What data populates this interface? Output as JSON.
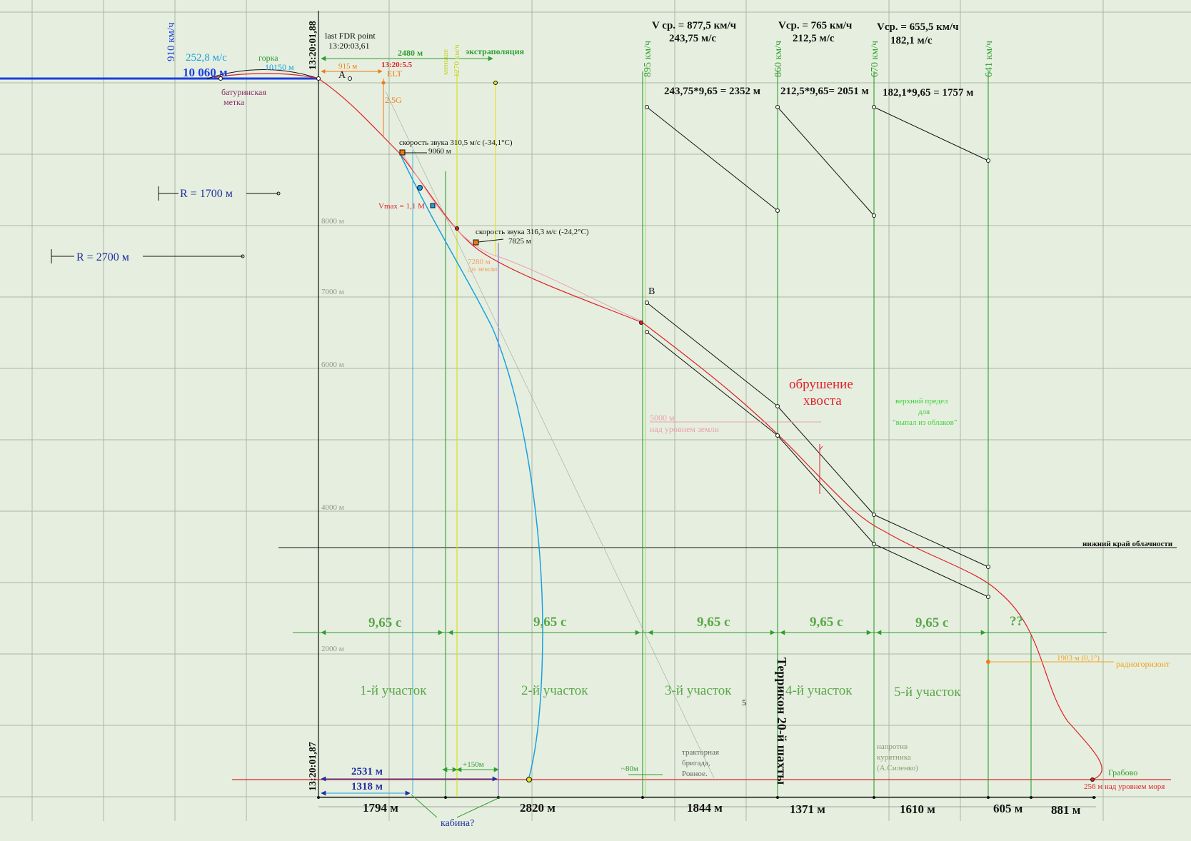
{
  "colors": {
    "background": "#e6efdf",
    "grid": "#a9b7a3",
    "trajectory_red": "#e0202a",
    "cabin_blue": "#1aa0e0",
    "green": "#2f9e2f",
    "label_green": "#5aa64a",
    "dark_blue": "#1f2fa0",
    "orange": "#f07a10",
    "black": "#111111",
    "purple": "#8a2a6a",
    "pink": "#e8a0b0",
    "yellow": "#e8e020",
    "violet": "#7a50d0"
  },
  "left_scale": {
    "speed_910": "910 км/ч",
    "speed_252": "252,8 м/с",
    "altitude_10060": "10 060 м",
    "hill_label": "горка",
    "hill_alt": "10150 м",
    "baturin_mark": [
      "батуринская",
      "метка"
    ],
    "point_a": "А",
    "time_top": "13:20:01,88",
    "time_bottom": "13:20:01,87",
    "r_1700": "R = 1700 м",
    "r_2700": "R = 2700 м"
  },
  "fdr": {
    "title": "last FDR point",
    "time": "13:20:03,61",
    "dist_915": "915 м",
    "elt_time": "13:20:5.5",
    "elt": "ELT",
    "g_load": "2.5G",
    "dist_2480": "2480 м",
    "extrapolation": "экстраполяция",
    "less_label": "меньше",
    "speed_1270": "1270 км/ч"
  },
  "altitude_marks": [
    "8000 м",
    "7000 м",
    "6000 м",
    "4000 м",
    "2000 м"
  ],
  "annotations": {
    "sound_speed_1": "скорость звука 310,5 м/с (-34,1°C)",
    "alt_9060": "9060 м",
    "vmax": "Vmax = 1,1 M",
    "sound_speed_2": "скорость звука 316,3 м/с (-24,2°C)",
    "alt_7825": "7825 м",
    "alt_7280": "7280 м",
    "to_ground": "до земли",
    "point_b": "В",
    "alt_5000": "5000 м",
    "above_ground": "над уровнем земли",
    "tail_collapse": [
      "обрушение",
      "хвоста"
    ],
    "cloud_upper": [
      "верхний предел",
      "для",
      "\"выпал из облаков\""
    ],
    "cloud_base": "нижний край облачности",
    "radio_alt": "1903 м (0,1°)",
    "radio_horizon": "радиогоризонт",
    "grabovo": "Грабово",
    "sea_level": "256 м над уровнем моря",
    "terrikon": "Террикон 20-й шахты",
    "tractor": [
      "тракторная",
      "бригада,",
      "Ровное."
    ],
    "opposite": [
      "напротив",
      "курятника",
      "(А.Силенко)"
    ],
    "plus150": "+150м",
    "minus80": "~80м",
    "digit_5": "5",
    "cabin": "кабина?"
  },
  "speed_blocks": [
    {
      "vline_label": "895 км/ч",
      "avg": "V ср. =  877,5 км/ч",
      "ms": "243,75 м/с",
      "calc": "243,75*9,65 = 2352 м"
    },
    {
      "vline_label": "860 км/ч",
      "avg": "Vср. = 765 км/ч",
      "ms": "212,5 м/с",
      "calc": "212,5*9,65= 2051 м"
    },
    {
      "vline_label": "670 км/ч",
      "avg": "Vср. = 655,5 км/ч",
      "ms": "182,1 м/с",
      "calc": "182,1*9,65 = 1757 м"
    },
    {
      "vline_label": "641 км/ч"
    }
  ],
  "time_intervals": [
    "9,65 с",
    "9,65 с",
    "9,65 с",
    "9,65 с",
    "9,65 с",
    "??"
  ],
  "segments": [
    "1-й участок",
    "2-й участок",
    "3-й участок",
    "4-й участок",
    "5-й участок"
  ],
  "distances": {
    "upper_2531": "2531 м",
    "upper_1318": "1318 м",
    "bottom": [
      "1794 м",
      "2820 м",
      "1844 м",
      "1371 м",
      "1610 м",
      "605 м",
      "881 м"
    ]
  }
}
